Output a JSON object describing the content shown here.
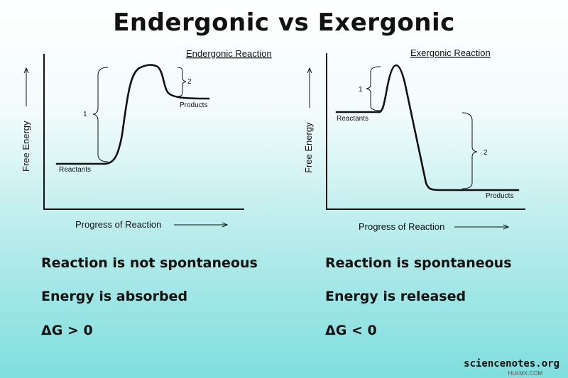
{
  "title": "Endergonic vs Exergonic",
  "endergonic": {
    "chart_title": "Endergonic Reaction",
    "y_axis": "Free Energy",
    "x_axis": "Progress of Reaction",
    "reactants": "Reactants",
    "products": "Products",
    "marker1": "1",
    "marker2": "2",
    "facts": [
      "Reaction is not spontaneous",
      "Energy is absorbed",
      "ΔG > 0"
    ]
  },
  "exergonic": {
    "chart_title": "Exergonic Reaction",
    "y_axis": "Free Energy",
    "x_axis": "Progress of Reaction",
    "reactants": "Reactants",
    "products": "Products",
    "marker1": "1",
    "marker2": "2",
    "facts": [
      "Reaction is spontaneous",
      "Energy is released",
      "ΔG < 0"
    ]
  },
  "credit": "sciencenotes.org",
  "watermark": "HLKMX.COM"
}
